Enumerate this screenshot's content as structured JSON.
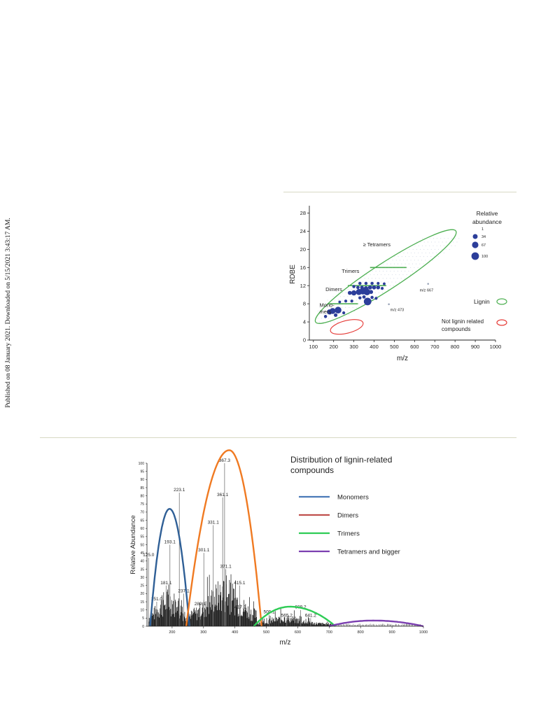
{
  "page": {
    "side_note": "Published on 08 January 2021. Downloaded on 5/15/2021 3:43:17 AM."
  },
  "chart_data": [
    {
      "type": "scatter",
      "title": "",
      "xlabel": "m/z",
      "ylabel": "RDBE",
      "xlim": [
        80,
        1000
      ],
      "ylim": [
        0,
        29
      ],
      "xticks": [
        100,
        200,
        300,
        400,
        500,
        600,
        700,
        800,
        900,
        1000
      ],
      "yticks": [
        0,
        4,
        8,
        12,
        16,
        20,
        24,
        28
      ],
      "grid": false,
      "legend_position": "right",
      "size_legend": {
        "title": "Relative abundance",
        "values": [
          1,
          34,
          67,
          100
        ]
      },
      "region_legend": [
        {
          "label": "Lignin",
          "color": "#4caf50"
        },
        {
          "label": "Not lignin related compounds",
          "color": "#e53935"
        }
      ],
      "annotations": [
        {
          "text": "Mono-",
          "x": 130,
          "y": 7.3
        },
        {
          "text": "mers",
          "x": 130,
          "y": 5.9
        },
        {
          "text": "Dimers",
          "x": 160,
          "y": 10.8
        },
        {
          "text": "Trimers",
          "x": 240,
          "y": 14.8
        },
        {
          "text": "≥ Tetramers",
          "x": 345,
          "y": 20.7
        },
        {
          "text": "m/z 667",
          "x": 625,
          "y": 10.7
        },
        {
          "text": "m/z 473",
          "x": 480,
          "y": 6.4
        }
      ],
      "band_lines": [
        {
          "x": [
            170,
            320
          ],
          "y": 8
        },
        {
          "x": [
            270,
            460
          ],
          "y": 12
        },
        {
          "x": [
            380,
            560
          ],
          "y": 16
        }
      ],
      "highlighted_points": [
        {
          "x": 667,
          "y": 12.4,
          "abundance": 3
        },
        {
          "x": 473,
          "y": 7.9,
          "abundance": 3
        }
      ],
      "points": [
        {
          "x": 180,
          "y": 6.2,
          "abundance": 40
        },
        {
          "x": 195,
          "y": 6.4,
          "abundance": 55
        },
        {
          "x": 222,
          "y": 6.6,
          "abundance": 75
        },
        {
          "x": 210,
          "y": 5.5,
          "abundance": 15
        },
        {
          "x": 160,
          "y": 5.2,
          "abundance": 10
        },
        {
          "x": 250,
          "y": 6.0,
          "abundance": 8
        },
        {
          "x": 300,
          "y": 10.4,
          "abundance": 40
        },
        {
          "x": 325,
          "y": 10.6,
          "abundance": 60
        },
        {
          "x": 345,
          "y": 10.8,
          "abundance": 80
        },
        {
          "x": 365,
          "y": 10.6,
          "abundance": 72
        },
        {
          "x": 368,
          "y": 8.5,
          "abundance": 100
        },
        {
          "x": 280,
          "y": 10.4,
          "abundance": 20
        },
        {
          "x": 385,
          "y": 10.6,
          "abundance": 20
        },
        {
          "x": 360,
          "y": 11.4,
          "abundance": 25
        },
        {
          "x": 380,
          "y": 11.6,
          "abundance": 22
        },
        {
          "x": 400,
          "y": 11.6,
          "abundance": 20
        },
        {
          "x": 420,
          "y": 11.6,
          "abundance": 18
        },
        {
          "x": 340,
          "y": 11.6,
          "abundance": 15
        },
        {
          "x": 320,
          "y": 11.6,
          "abundance": 12
        },
        {
          "x": 300,
          "y": 11.8,
          "abundance": 10
        },
        {
          "x": 440,
          "y": 11.4,
          "abundance": 8
        },
        {
          "x": 330,
          "y": 12.5,
          "abundance": 10
        },
        {
          "x": 360,
          "y": 12.5,
          "abundance": 10
        },
        {
          "x": 390,
          "y": 12.5,
          "abundance": 10
        },
        {
          "x": 420,
          "y": 12.5,
          "abundance": 8
        },
        {
          "x": 450,
          "y": 12.4,
          "abundance": 6
        },
        {
          "x": 350,
          "y": 9.5,
          "abundance": 12
        },
        {
          "x": 330,
          "y": 9.3,
          "abundance": 10
        },
        {
          "x": 390,
          "y": 9.4,
          "abundance": 10
        },
        {
          "x": 410,
          "y": 9.2,
          "abundance": 8
        },
        {
          "x": 260,
          "y": 8.6,
          "abundance": 8
        },
        {
          "x": 290,
          "y": 8.6,
          "abundance": 8
        },
        {
          "x": 230,
          "y": 8.4,
          "abundance": 6
        }
      ]
    },
    {
      "type": "bar",
      "title": "Distribution of lignin-related compounds",
      "xlabel": "m/z",
      "ylabel": "Relative Abundance",
      "xlim": [
        120,
        1000
      ],
      "ylim": [
        0,
        100
      ],
      "xticks": [
        200,
        300,
        400,
        500,
        600,
        700,
        800,
        900,
        1000
      ],
      "yticks": [
        0,
        5,
        10,
        15,
        20,
        25,
        30,
        35,
        40,
        45,
        50,
        55,
        60,
        65,
        70,
        75,
        80,
        85,
        90,
        95,
        100
      ],
      "legend_position": "top-right",
      "series": [
        {
          "name": "Monomers",
          "legend_color": "#4a7ab8",
          "curve_color": "#2f5f96",
          "x_range": [
            130,
            255
          ],
          "peak": [
            192,
            72
          ]
        },
        {
          "name": "Dimers",
          "legend_color": "#c0504d",
          "curve_color": "#f07a22",
          "x_range": [
            245,
            485
          ],
          "peak": [
            382,
            108
          ]
        },
        {
          "name": "Trimers",
          "legend_color": "#2ecc55",
          "curve_color": "#2ecc55",
          "x_range": [
            460,
            720
          ],
          "peak": [
            575,
            12
          ]
        },
        {
          "name": "Tetramers and bigger",
          "legend_color": "#7b3fb0",
          "curve_color": "#7b3fb0",
          "x_range": [
            700,
            1000
          ],
          "peak": [
            840,
            3.5
          ]
        }
      ],
      "labeled_peaks": [
        {
          "label": "125.0",
          "x": 125,
          "y": 42
        },
        {
          "label": "151.0",
          "x": 151,
          "y": 15
        },
        {
          "label": "181.1",
          "x": 181,
          "y": 25
        },
        {
          "label": "193.1",
          "x": 193,
          "y": 50
        },
        {
          "label": "223.1",
          "x": 223,
          "y": 82
        },
        {
          "label": "237.1",
          "x": 237,
          "y": 20
        },
        {
          "label": "289.1",
          "x": 289,
          "y": 12
        },
        {
          "label": "301.1",
          "x": 301,
          "y": 45
        },
        {
          "label": "331.1",
          "x": 331,
          "y": 62
        },
        {
          "label": "361.1",
          "x": 361,
          "y": 79
        },
        {
          "label": "367.3",
          "x": 367,
          "y": 100
        },
        {
          "label": "371.1",
          "x": 371,
          "y": 35
        },
        {
          "label": "415.1",
          "x": 415,
          "y": 25
        },
        {
          "label": "417.2",
          "x": 417,
          "y": 10
        },
        {
          "label": "509.1",
          "x": 509,
          "y": 7
        },
        {
          "label": "565.2",
          "x": 565,
          "y": 5
        },
        {
          "label": "609.2",
          "x": 609,
          "y": 10
        },
        {
          "label": "641.2",
          "x": 641,
          "y": 5
        }
      ]
    }
  ]
}
